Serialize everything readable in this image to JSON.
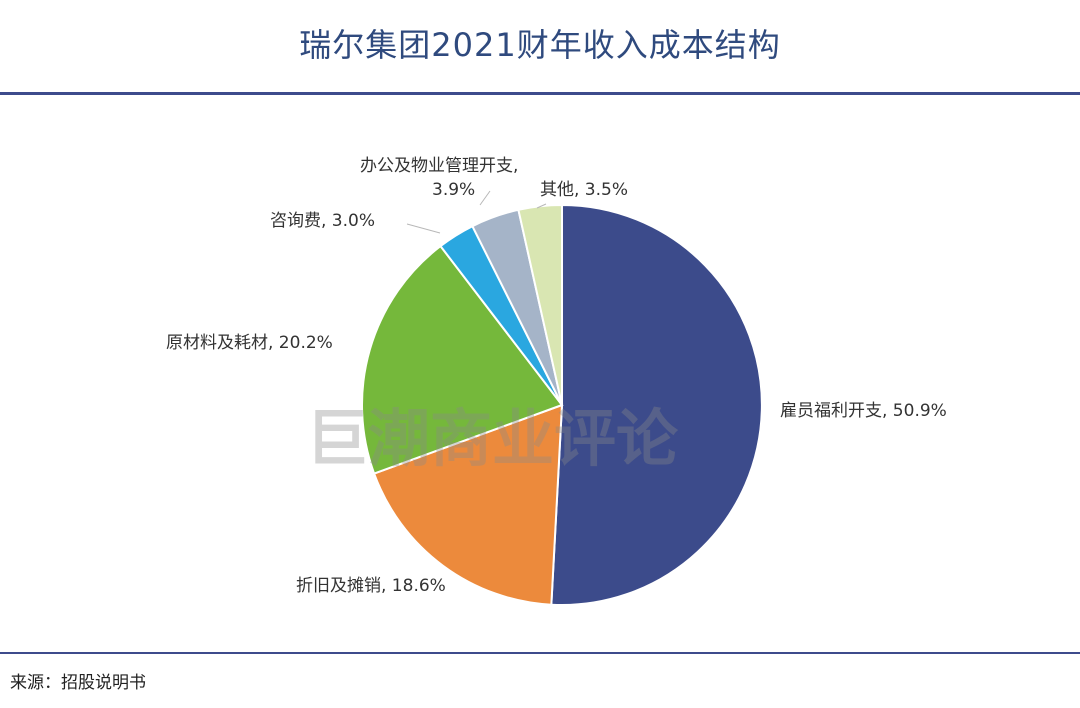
{
  "header": {
    "title": "瑞尔集团2021财年收入成本结构"
  },
  "footer": {
    "source": "来源：招股说明书"
  },
  "watermark": "巨潮商业评论",
  "chart_data": {
    "type": "pie",
    "title": "瑞尔集团2021财年收入成本结构",
    "slices": [
      {
        "name": "雇员福利开支",
        "label_name": "雇员福利开支",
        "value": 50.9,
        "label": "50.9%",
        "color": "#3c4b8b"
      },
      {
        "name": "折旧及摊销",
        "label_name": "折旧及摊销",
        "value": 18.6,
        "label": "18.6%",
        "color": "#ec8a3c"
      },
      {
        "name": "原材料及耗材",
        "label_name": "原材料及耗材",
        "value": 20.2,
        "label": "20.2%",
        "color": "#75b83b"
      },
      {
        "name": "咨询费",
        "label_name": "咨询费",
        "value": 3.0,
        "label": "3.0%",
        "color": "#2aa7e0"
      },
      {
        "name": "办公及物业管理开支",
        "label_name": "办公及物业管理开支,",
        "value": 3.9,
        "label": "3.9%",
        "color": "#a5b4c8"
      },
      {
        "name": "其他",
        "label_name": "其他",
        "value": 3.5,
        "label": "3.5%",
        "color": "#d9e6b2"
      }
    ]
  }
}
